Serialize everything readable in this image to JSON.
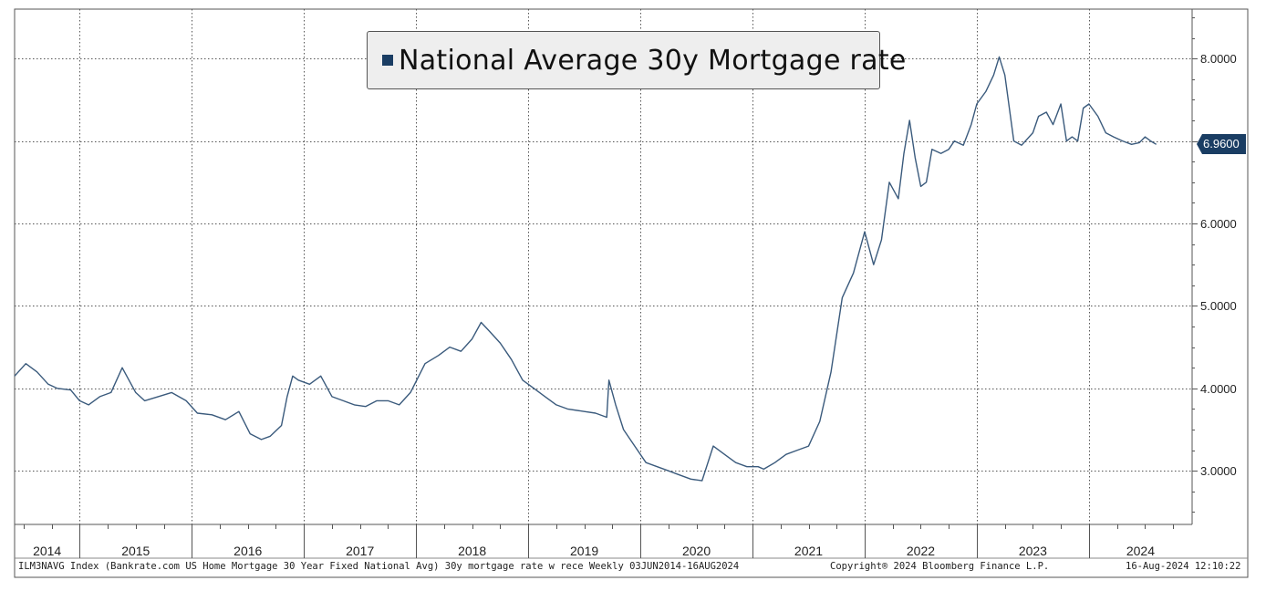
{
  "chart_data": {
    "type": "line",
    "title": "National Average 30y Mortgage rate",
    "legend": [
      "National Average 30y Mortgage rate"
    ],
    "legend_position": "top-center",
    "xlabel": "",
    "ylabel": "",
    "xlim": [
      2014.42,
      2024.92
    ],
    "ylim": [
      2.35,
      8.6
    ],
    "y_ticks": [
      3.0,
      4.0,
      5.0,
      6.0,
      7.0,
      8.0
    ],
    "y_tick_labels": [
      "3.0000",
      "4.0000",
      "5.0000",
      "6.0000",
      "",
      "8.0000"
    ],
    "x_tick_labels": [
      "2014",
      "2015",
      "2016",
      "2017",
      "2018",
      "2019",
      "2020",
      "2021",
      "2022",
      "2023",
      "2024"
    ],
    "x_year_boundaries": [
      2015,
      2016,
      2017,
      2018,
      2019,
      2020,
      2021,
      2022,
      2023,
      2024
    ],
    "grid": true,
    "last_value": 6.96,
    "last_value_label": "6.9600",
    "series": [
      {
        "name": "National Average 30y Mortgage rate",
        "color": "#3a5a7c",
        "x": [
          2014.42,
          2014.52,
          2014.62,
          2014.72,
          2014.8,
          2014.92,
          2015.0,
          2015.08,
          2015.18,
          2015.28,
          2015.38,
          2015.5,
          2015.58,
          2015.7,
          2015.82,
          2015.95,
          2016.05,
          2016.18,
          2016.3,
          2016.42,
          2016.52,
          2016.62,
          2016.7,
          2016.8,
          2016.85,
          2016.9,
          2016.95,
          2017.05,
          2017.15,
          2017.25,
          2017.35,
          2017.45,
          2017.55,
          2017.65,
          2017.75,
          2017.85,
          2017.95,
          2018.08,
          2018.2,
          2018.3,
          2018.4,
          2018.5,
          2018.58,
          2018.65,
          2018.75,
          2018.85,
          2018.95,
          2019.05,
          2019.15,
          2019.25,
          2019.35,
          2019.5,
          2019.6,
          2019.7,
          2019.72,
          2019.78,
          2019.85,
          2019.95,
          2020.05,
          2020.15,
          2020.25,
          2020.35,
          2020.45,
          2020.55,
          2020.65,
          2020.75,
          2020.85,
          2020.95,
          2021.05,
          2021.1,
          2021.2,
          2021.3,
          2021.4,
          2021.5,
          2021.6,
          2021.7,
          2021.8,
          2021.9,
          2022.0,
          2022.08,
          2022.15,
          2022.22,
          2022.3,
          2022.35,
          2022.4,
          2022.45,
          2022.5,
          2022.55,
          2022.6,
          2022.68,
          2022.75,
          2022.8,
          2022.88,
          2022.95,
          2023.0,
          2023.08,
          2023.15,
          2023.2,
          2023.25,
          2023.33,
          2023.4,
          2023.5,
          2023.55,
          2023.62,
          2023.68,
          2023.75,
          2023.8,
          2023.85,
          2023.9,
          2023.95,
          2024.0,
          2024.08,
          2024.15,
          2024.22,
          2024.3,
          2024.38,
          2024.45,
          2024.5,
          2024.55,
          2024.6
        ],
        "values": [
          4.15,
          4.3,
          4.2,
          4.05,
          4.0,
          3.98,
          3.85,
          3.8,
          3.9,
          3.95,
          4.25,
          3.95,
          3.85,
          3.9,
          3.95,
          3.85,
          3.7,
          3.68,
          3.62,
          3.72,
          3.45,
          3.38,
          3.42,
          3.55,
          3.9,
          4.15,
          4.1,
          4.05,
          4.15,
          3.9,
          3.85,
          3.8,
          3.78,
          3.85,
          3.85,
          3.8,
          3.95,
          4.3,
          4.4,
          4.5,
          4.45,
          4.6,
          4.8,
          4.7,
          4.55,
          4.35,
          4.1,
          4.0,
          3.9,
          3.8,
          3.75,
          3.72,
          3.7,
          3.65,
          4.1,
          3.8,
          3.5,
          3.3,
          3.1,
          3.05,
          3.0,
          2.95,
          2.9,
          2.88,
          3.3,
          3.2,
          3.1,
          3.05,
          3.05,
          3.02,
          3.1,
          3.2,
          3.25,
          3.3,
          3.6,
          4.2,
          5.1,
          5.4,
          5.9,
          5.5,
          5.8,
          6.5,
          6.3,
          6.85,
          7.25,
          6.8,
          6.45,
          6.5,
          6.9,
          6.85,
          6.9,
          7.0,
          6.95,
          7.2,
          7.45,
          7.6,
          7.8,
          8.02,
          7.8,
          7.0,
          6.95,
          7.1,
          7.3,
          7.35,
          7.2,
          7.45,
          7.0,
          7.05,
          7.0,
          7.4,
          7.45,
          7.3,
          7.1,
          7.05,
          7.0,
          6.96,
          6.98,
          7.05,
          7.0,
          6.96
        ]
      }
    ],
    "footer": {
      "left": "ILM3NAVG Index (Bankrate.com US Home Mortgage 30 Year Fixed National Avg) 30y mortgage rate w rece  Weekly 03JUN2014-16AUG2024",
      "center": "Copyright® 2024 Bloomberg Finance L.P.",
      "right": "16-Aug-2024 12:10:22"
    }
  }
}
